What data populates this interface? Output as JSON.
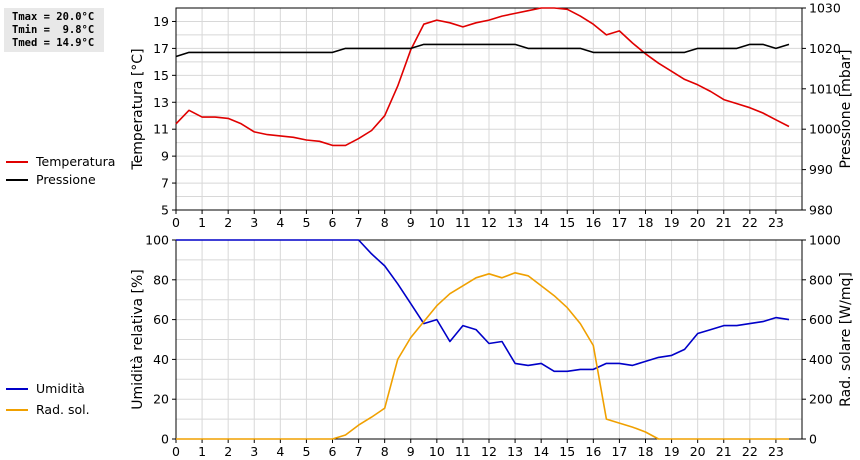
{
  "stats": {
    "tmax": "Tmax = 20.0°C",
    "tmin": "Tmin =  9.8°C",
    "tmed": "Tmed = 14.9°C"
  },
  "colors": {
    "temperature": "#e00000",
    "pressure": "#000000",
    "humidity": "#0000c8",
    "radiation": "#f0a000",
    "grid": "#d8d8d8"
  },
  "chart_data": [
    {
      "type": "line",
      "legend_placement": "left",
      "grid": true,
      "xlim": [
        0,
        24
      ],
      "x_ticks": [
        "0",
        "1",
        "2",
        "3",
        "4",
        "5",
        "6",
        "7",
        "8",
        "9",
        "10",
        "11",
        "12",
        "13",
        "14",
        "15",
        "16",
        "17",
        "18",
        "19",
        "20",
        "21",
        "22",
        "23"
      ],
      "left_axis": {
        "label": "Temperatura [°C]",
        "ylim": [
          5,
          20
        ],
        "ticks": [
          "5",
          "7",
          "9",
          "11",
          "13",
          "15",
          "17",
          "19"
        ]
      },
      "right_axis": {
        "label": "Pressione [mbar]",
        "ylim": [
          980,
          1030
        ],
        "ticks": [
          "980",
          "990",
          "1000",
          "1010",
          "1020",
          "1030"
        ]
      },
      "series": [
        {
          "name": "Temperatura",
          "axis": "left",
          "x": [
            0,
            0.5,
            1,
            1.5,
            2,
            2.5,
            3,
            3.5,
            4,
            4.5,
            5,
            5.5,
            6,
            6.5,
            7,
            7.5,
            8,
            8.5,
            9,
            9.5,
            10,
            10.5,
            11,
            11.5,
            12,
            12.5,
            13,
            13.5,
            14,
            14.5,
            15,
            15.5,
            16,
            16.5,
            17,
            17.5,
            18,
            18.5,
            19,
            19.5,
            20,
            20.5,
            21,
            21.5,
            22,
            22.5,
            23,
            23.5
          ],
          "y": [
            11.4,
            12.4,
            11.9,
            11.9,
            11.8,
            11.4,
            10.8,
            10.6,
            10.5,
            10.4,
            10.2,
            10.1,
            9.8,
            9.8,
            10.3,
            10.9,
            12.0,
            14.2,
            16.9,
            18.8,
            19.1,
            18.9,
            18.6,
            18.9,
            19.1,
            19.4,
            19.6,
            19.8,
            20.0,
            20.0,
            19.9,
            19.4,
            18.8,
            18.0,
            18.3,
            17.4,
            16.6,
            15.9,
            15.3,
            14.7,
            14.3,
            13.8,
            13.2,
            12.9,
            12.6,
            12.2,
            11.7,
            11.2
          ]
        },
        {
          "name": "Pressione",
          "axis": "right",
          "x": [
            0,
            0.5,
            1,
            2,
            3,
            4,
            5,
            6,
            6.5,
            7,
            8,
            9,
            9.5,
            10,
            11,
            12,
            13,
            13.5,
            14,
            15,
            15.5,
            16,
            16.5,
            17,
            18,
            19,
            19.5,
            20,
            21,
            21.5,
            22,
            22.5,
            23,
            23.5
          ],
          "y": [
            1018,
            1019,
            1019,
            1019,
            1019,
            1019,
            1019,
            1019,
            1020,
            1020,
            1020,
            1020,
            1021,
            1021,
            1021,
            1021,
            1021,
            1020,
            1020,
            1020,
            1020,
            1019,
            1019,
            1019,
            1019,
            1019,
            1019,
            1020,
            1020,
            1020,
            1021,
            1021,
            1020,
            1021
          ]
        }
      ]
    },
    {
      "type": "line",
      "legend_placement": "left",
      "grid": true,
      "xlim": [
        0,
        24
      ],
      "x_ticks": [
        "0",
        "1",
        "2",
        "3",
        "4",
        "5",
        "6",
        "7",
        "8",
        "9",
        "10",
        "11",
        "12",
        "13",
        "14",
        "15",
        "16",
        "17",
        "18",
        "19",
        "20",
        "21",
        "22",
        "23"
      ],
      "left_axis": {
        "label": "Umidità relativa [%]",
        "ylim": [
          0,
          100
        ],
        "ticks": [
          "0",
          "20",
          "40",
          "60",
          "80",
          "100"
        ]
      },
      "right_axis": {
        "label": "Rad. solare [W/mq]",
        "ylim": [
          0,
          1000
        ],
        "ticks": [
          "0",
          "200",
          "400",
          "600",
          "800",
          "1000"
        ]
      },
      "series": [
        {
          "name": "Umidità",
          "axis": "left",
          "x": [
            0,
            1,
            2,
            3,
            4,
            5,
            6,
            6.5,
            7,
            7.5,
            8,
            8.5,
            9,
            9.5,
            10,
            10.5,
            11,
            11.5,
            12,
            12.5,
            13,
            13.5,
            14,
            14.5,
            15,
            15.5,
            16,
            16.5,
            17,
            17.5,
            18,
            18.5,
            19,
            19.5,
            20,
            20.5,
            21,
            21.5,
            22,
            22.5,
            23,
            23.5
          ],
          "y": [
            100,
            100,
            100,
            100,
            100,
            100,
            100,
            100,
            100,
            93,
            87,
            78,
            68,
            58,
            60,
            49,
            57,
            55,
            48,
            49,
            38,
            37,
            38,
            34,
            34,
            35,
            35,
            38,
            38,
            37,
            39,
            41,
            42,
            45,
            53,
            55,
            57,
            57,
            58,
            59,
            61,
            60
          ]
        },
        {
          "name": "Rad. sol.",
          "axis": "right",
          "x": [
            0,
            1,
            2,
            3,
            4,
            5,
            6,
            6.5,
            7,
            7.5,
            8,
            8.5,
            9,
            9.5,
            10,
            10.5,
            11,
            11.5,
            12,
            12.5,
            13,
            13.5,
            14,
            14.5,
            15,
            15.5,
            16,
            16.5,
            17,
            17.5,
            18,
            18.5,
            19,
            20,
            21,
            22,
            23,
            23.5
          ],
          "y": [
            0,
            0,
            0,
            0,
            0,
            0,
            0,
            20,
            70,
            110,
            155,
            400,
            510,
            590,
            670,
            730,
            770,
            810,
            830,
            810,
            835,
            820,
            770,
            720,
            660,
            580,
            470,
            100,
            80,
            60,
            35,
            0,
            0,
            0,
            0,
            0,
            0,
            0
          ]
        }
      ]
    }
  ]
}
